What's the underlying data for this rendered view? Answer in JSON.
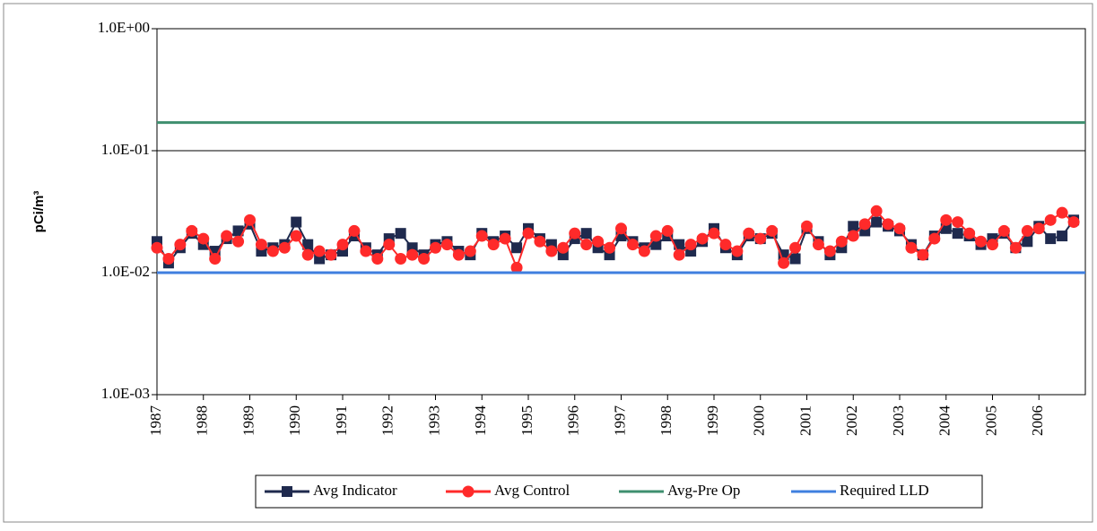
{
  "chart_data": {
    "type": "line",
    "y_label": "pCi/m³",
    "log_scale_y": true,
    "grid": true,
    "legend_position": "bottom",
    "xlim": [
      1987,
      2007
    ],
    "xticks": [
      1987,
      1988,
      1989,
      1990,
      1991,
      1992,
      1993,
      1994,
      1995,
      1996,
      1997,
      1998,
      1999,
      2000,
      2001,
      2002,
      2003,
      2004,
      2005,
      2006
    ],
    "ylim": [
      0.001,
      1
    ],
    "yticks": [
      {
        "value": 0.001,
        "label": "1.0E-03"
      },
      {
        "value": 0.01,
        "label": "1.0E-02"
      },
      {
        "value": 0.1,
        "label": "1.0E-01"
      },
      {
        "value": 1,
        "label": "1.0E+00"
      }
    ],
    "x": [
      1987,
      1987.25,
      1987.5,
      1987.75,
      1988,
      1988.25,
      1988.5,
      1988.75,
      1989,
      1989.25,
      1989.5,
      1989.75,
      1990,
      1990.25,
      1990.5,
      1990.75,
      1991,
      1991.25,
      1991.5,
      1991.75,
      1992,
      1992.25,
      1992.5,
      1992.75,
      1993,
      1993.25,
      1993.5,
      1993.75,
      1994,
      1994.25,
      1994.5,
      1994.75,
      1995,
      1995.25,
      1995.5,
      1995.75,
      1996,
      1996.25,
      1996.5,
      1996.75,
      1997,
      1997.25,
      1997.5,
      1997.75,
      1998,
      1998.25,
      1998.5,
      1998.75,
      1999,
      1999.25,
      1999.5,
      1999.75,
      2000,
      2000.25,
      2000.5,
      2000.75,
      2001,
      2001.25,
      2001.5,
      2001.75,
      2002,
      2002.25,
      2002.5,
      2002.75,
      2003,
      2003.25,
      2003.5,
      2003.75,
      2004,
      2004.25,
      2004.5,
      2004.75,
      2005,
      2005.25,
      2005.5,
      2005.75,
      2006,
      2006.25,
      2006.5,
      2006.75
    ],
    "series": [
      {
        "name": "Avg Indicator",
        "color": "#1f2a4e",
        "marker": "square",
        "values": [
          0.018,
          0.012,
          0.016,
          0.021,
          0.017,
          0.015,
          0.019,
          0.022,
          0.025,
          0.015,
          0.016,
          0.017,
          0.026,
          0.017,
          0.013,
          0.014,
          0.015,
          0.02,
          0.016,
          0.014,
          0.019,
          0.021,
          0.016,
          0.014,
          0.017,
          0.018,
          0.015,
          0.014,
          0.021,
          0.018,
          0.02,
          0.016,
          0.023,
          0.019,
          0.017,
          0.014,
          0.019,
          0.021,
          0.016,
          0.014,
          0.02,
          0.018,
          0.016,
          0.017,
          0.02,
          0.017,
          0.015,
          0.018,
          0.023,
          0.016,
          0.014,
          0.02,
          0.019,
          0.021,
          0.014,
          0.013,
          0.023,
          0.018,
          0.014,
          0.016,
          0.024,
          0.022,
          0.026,
          0.024,
          0.022,
          0.017,
          0.014,
          0.02,
          0.023,
          0.021,
          0.02,
          0.017,
          0.019,
          0.021,
          0.016,
          0.018,
          0.024,
          0.019,
          0.02,
          0.027
        ]
      },
      {
        "name": "Avg Control",
        "color": "#ff2a2a",
        "marker": "circle",
        "values": [
          0.016,
          0.013,
          0.017,
          0.022,
          0.019,
          0.013,
          0.02,
          0.018,
          0.027,
          0.017,
          0.015,
          0.016,
          0.02,
          0.014,
          0.015,
          0.014,
          0.017,
          0.022,
          0.015,
          0.013,
          0.017,
          0.013,
          0.014,
          0.013,
          0.016,
          0.017,
          0.014,
          0.015,
          0.02,
          0.017,
          0.019,
          0.011,
          0.021,
          0.018,
          0.015,
          0.016,
          0.021,
          0.017,
          0.018,
          0.016,
          0.023,
          0.017,
          0.015,
          0.02,
          0.022,
          0.014,
          0.017,
          0.019,
          0.021,
          0.017,
          0.015,
          0.021,
          0.019,
          0.022,
          0.012,
          0.016,
          0.024,
          0.017,
          0.015,
          0.018,
          0.02,
          0.025,
          0.032,
          0.025,
          0.023,
          0.016,
          0.014,
          0.019,
          0.027,
          0.026,
          0.021,
          0.018,
          0.017,
          0.022,
          0.016,
          0.022,
          0.023,
          0.027,
          0.031,
          0.026
        ]
      },
      {
        "name": "Avg-Pre Op",
        "color": "#3f8f6f",
        "value": 0.17
      },
      {
        "name": "Required LLD",
        "color": "#3f7fdf",
        "value": 0.01
      }
    ]
  }
}
